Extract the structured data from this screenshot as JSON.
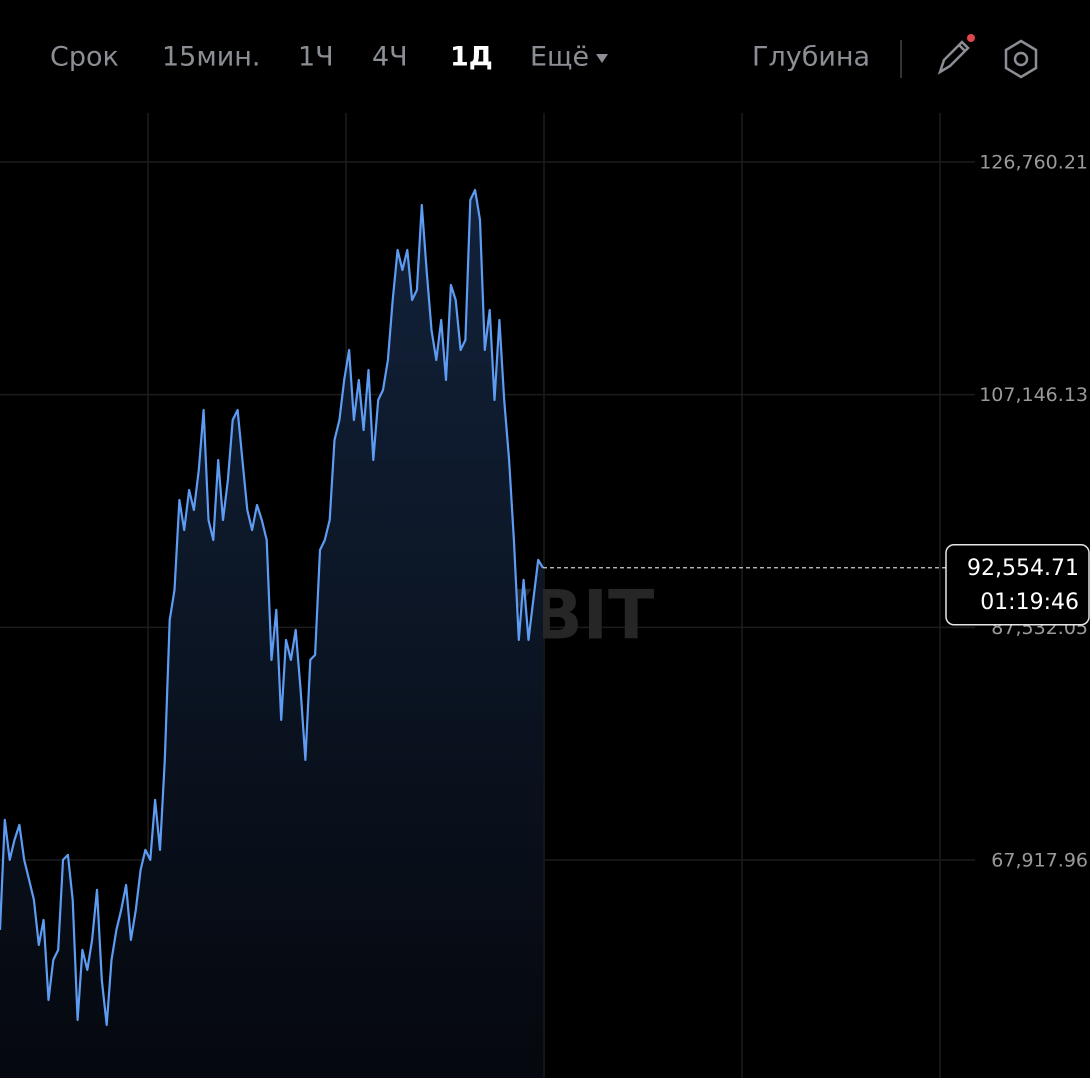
{
  "toolbar": {
    "tabs": [
      "Срок",
      "15мин.",
      "1Ч",
      "4Ч",
      "1Д",
      "Ещё"
    ],
    "active_index": 4,
    "depth": "Глубина"
  },
  "chart_data": {
    "type": "area",
    "values": [
      62025,
      71297,
      67926,
      69611,
      70876,
      67926,
      66240,
      64554,
      60761,
      62868,
      56125,
      59497,
      60339,
      67926,
      68347,
      64554,
      54439,
      60339,
      58654,
      61182,
      65397,
      57811,
      54018,
      59497,
      62025,
      63711,
      65818,
      61182,
      63711,
      67083,
      68768,
      67926,
      72983,
      68768,
      76355,
      88155,
      90684,
      98270,
      95741,
      99113,
      97427,
      100799,
      105856,
      96584,
      94898,
      101642,
      96584,
      99956,
      105013,
      105856,
      101642,
      97427,
      95741,
      97849,
      96584,
      94898,
      84784,
      88998,
      79726,
      86469,
      84784,
      87312,
      82255,
      76355,
      84784,
      85205,
      94055,
      94898,
      96584,
      103327,
      105013,
      108385,
      110913,
      105013,
      108385,
      104170,
      109228,
      101642,
      106699,
      107542,
      110071,
      115128,
      119342,
      117657,
      119342,
      115128,
      115971,
      123136,
      117657,
      112599,
      110071,
      113442,
      108385,
      116392,
      115128,
      110913,
      111756,
      123557,
      124400,
      121871,
      110913,
      114285,
      106699,
      113442,
      106699,
      101642,
      94898,
      86469,
      91527,
      86469,
      89841,
      93213,
      92554.71
    ],
    "color": "#5d9cf2",
    "ylim": [
      49540,
      130891
    ],
    "yticks": [
      {
        "value": 126760.21,
        "label": "126,760.21"
      },
      {
        "value": 107146.13,
        "label": "107,146.13"
      },
      {
        "value": 87532.05,
        "label": "87,532.05"
      },
      {
        "value": 67917.96,
        "label": "67,917.96"
      }
    ],
    "grid": true,
    "current_price": 92554.71,
    "current_price_label": "92,554.71",
    "countdown": "01:19:46",
    "watermark": "BYBIT"
  }
}
